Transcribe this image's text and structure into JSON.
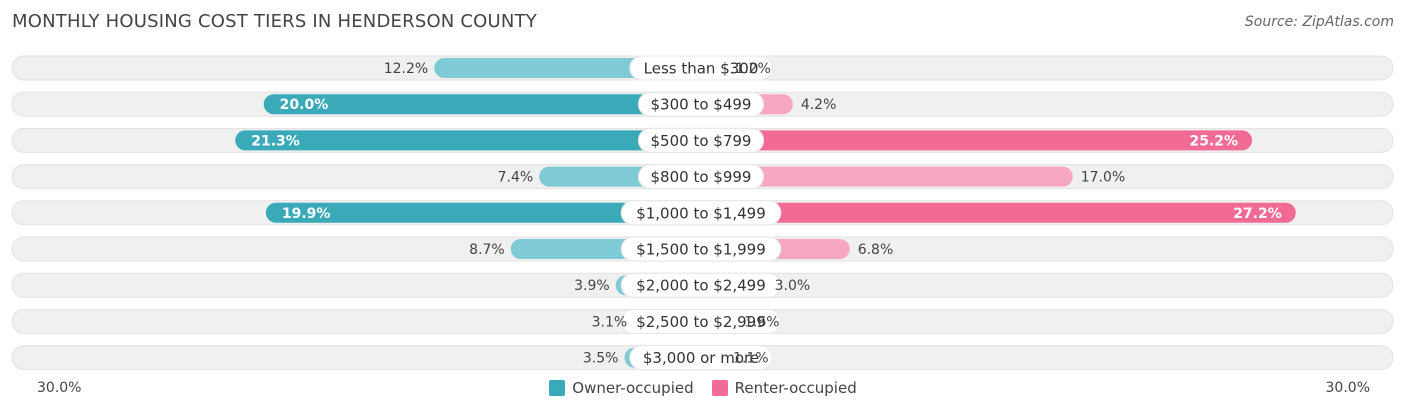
{
  "title": "MONTHLY HOUSING COST TIERS IN HENDERSON COUNTY",
  "source": "Source: ZipAtlas.com",
  "colors": {
    "owner": "#3aaab9",
    "owner_light": "#7fcbd5",
    "renter": "#f26b95",
    "renter_light": "#f7a7c0",
    "track": "#f0f0f0"
  },
  "chart_data": {
    "type": "bar",
    "orientation": "horizontal-diverging",
    "categories": [
      "Less than $300",
      "$300 to $499",
      "$500 to $799",
      "$800 to $999",
      "$1,000 to $1,499",
      "$1,500 to $1,999",
      "$2,000 to $2,499",
      "$2,500 to $2,999",
      "$3,000 or more"
    ],
    "series": [
      {
        "name": "Owner-occupied",
        "values": [
          12.2,
          20.0,
          21.3,
          7.4,
          19.9,
          8.7,
          3.9,
          3.1,
          3.5
        ],
        "labels": [
          "12.2%",
          "20.0%",
          "21.3%",
          "7.4%",
          "19.9%",
          "8.7%",
          "3.9%",
          "3.1%",
          "3.5%"
        ]
      },
      {
        "name": "Renter-occupied",
        "values": [
          1.2,
          4.2,
          25.2,
          17.0,
          27.2,
          6.8,
          3.0,
          1.6,
          1.1
        ],
        "labels": [
          "1.2%",
          "4.2%",
          "25.2%",
          "17.0%",
          "27.2%",
          "6.8%",
          "3.0%",
          "1.6%",
          "1.1%"
        ]
      }
    ],
    "xlim": [
      0,
      30
    ],
    "axis_left_label": "30.0%",
    "axis_right_label": "30.0%",
    "legend_position": "bottom-center"
  }
}
